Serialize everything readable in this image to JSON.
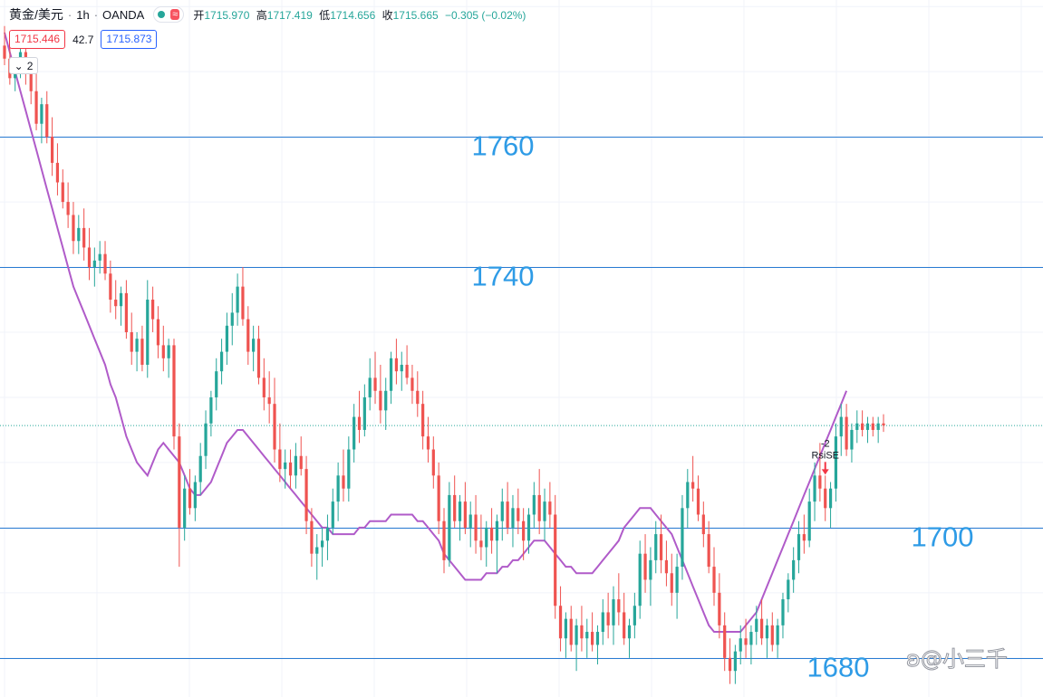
{
  "header": {
    "symbol": "黄金/美元",
    "interval": "1h",
    "source": "OANDA",
    "indicator_icon": "wave-icon",
    "open_label": "开",
    "open": "1715.970",
    "high_label": "高",
    "high": "1717.419",
    "low_label": "低",
    "low": "1714.656",
    "close_label": "收",
    "close": "1715.665",
    "change": "−0.305 (−0.02%)",
    "bid": "1715.446",
    "spread": "42.7",
    "ask": "1715.873",
    "collapse_count": "2",
    "colors": {
      "up": "#26a69a",
      "down": "#ef5350",
      "ma": "#b05bc9",
      "level": "#2a7bd2",
      "label": "#2e9be6"
    }
  },
  "watermark": "@小三千",
  "chart_data": {
    "type": "candlestick",
    "x": "bars (hourly, no axis labels shown)",
    "y_range": [
      1674,
      1781
    ],
    "grid": true,
    "levels": [
      {
        "value": 1760,
        "label": "1760"
      },
      {
        "value": 1740,
        "label": "1740"
      },
      {
        "value": 1700,
        "label": "1700"
      },
      {
        "value": 1680,
        "label": "1680"
      }
    ],
    "current_price": 1715.665,
    "signal": {
      "count": "-2",
      "name": "RsiSE",
      "bar": 155
    },
    "ohlc": [
      [
        1774,
        1777,
        1771,
        1772
      ],
      [
        1772,
        1774,
        1768,
        1769
      ],
      [
        1769,
        1772,
        1767,
        1771
      ],
      [
        1771,
        1775,
        1769,
        1773
      ],
      [
        1773,
        1775,
        1768,
        1770
      ],
      [
        1770,
        1772,
        1765,
        1767
      ],
      [
        1767,
        1770,
        1761,
        1762
      ],
      [
        1762,
        1766,
        1759,
        1765
      ],
      [
        1765,
        1767,
        1759,
        1760
      ],
      [
        1760,
        1763,
        1754,
        1756
      ],
      [
        1756,
        1759,
        1751,
        1753
      ],
      [
        1753,
        1755,
        1749,
        1750
      ],
      [
        1750,
        1753,
        1746,
        1748
      ],
      [
        1748,
        1750,
        1742,
        1744
      ],
      [
        1744,
        1748,
        1742,
        1746
      ],
      [
        1746,
        1749,
        1741,
        1743
      ],
      [
        1743,
        1746,
        1738,
        1740
      ],
      [
        1740,
        1743,
        1737,
        1741
      ],
      [
        1741,
        1744,
        1739,
        1742
      ],
      [
        1742,
        1744,
        1738,
        1739
      ],
      [
        1739,
        1741,
        1733,
        1735
      ],
      [
        1735,
        1738,
        1732,
        1734
      ],
      [
        1734,
        1737,
        1731,
        1736
      ],
      [
        1736,
        1738,
        1729,
        1730
      ],
      [
        1730,
        1733,
        1725,
        1727
      ],
      [
        1727,
        1730,
        1724,
        1729
      ],
      [
        1729,
        1731,
        1724,
        1725
      ],
      [
        1725,
        1738,
        1723,
        1735
      ],
      [
        1735,
        1737,
        1730,
        1732
      ],
      [
        1732,
        1734,
        1726,
        1728
      ],
      [
        1728,
        1731,
        1724,
        1726
      ],
      [
        1726,
        1729,
        1723,
        1728
      ],
      [
        1728,
        1729,
        1712,
        1714
      ],
      [
        1714,
        1716,
        1694,
        1700
      ],
      [
        1700,
        1708,
        1698,
        1706
      ],
      [
        1706,
        1709,
        1702,
        1703
      ],
      [
        1703,
        1708,
        1701,
        1707
      ],
      [
        1707,
        1713,
        1705,
        1711
      ],
      [
        1711,
        1718,
        1709,
        1716
      ],
      [
        1716,
        1721,
        1714,
        1720
      ],
      [
        1720,
        1726,
        1718,
        1724
      ],
      [
        1724,
        1729,
        1722,
        1727
      ],
      [
        1727,
        1733,
        1725,
        1731
      ],
      [
        1731,
        1736,
        1728,
        1733
      ],
      [
        1733,
        1739,
        1731,
        1737
      ],
      [
        1737,
        1740,
        1731,
        1732
      ],
      [
        1732,
        1734,
        1725,
        1727
      ],
      [
        1727,
        1731,
        1724,
        1729
      ],
      [
        1729,
        1731,
        1722,
        1723
      ],
      [
        1723,
        1726,
        1718,
        1720
      ],
      [
        1720,
        1724,
        1716,
        1719
      ],
      [
        1719,
        1723,
        1710,
        1712
      ],
      [
        1712,
        1716,
        1707,
        1709
      ],
      [
        1709,
        1712,
        1706,
        1710
      ],
      [
        1710,
        1712,
        1706,
        1708
      ],
      [
        1708,
        1713,
        1706,
        1711
      ],
      [
        1711,
        1714,
        1708,
        1709
      ],
      [
        1709,
        1711,
        1699,
        1701
      ],
      [
        1701,
        1703,
        1694,
        1696
      ],
      [
        1696,
        1699,
        1692,
        1697
      ],
      [
        1697,
        1700,
        1694,
        1698
      ],
      [
        1698,
        1702,
        1695,
        1700
      ],
      [
        1700,
        1706,
        1699,
        1704
      ],
      [
        1704,
        1710,
        1701,
        1708
      ],
      [
        1708,
        1712,
        1704,
        1706
      ],
      [
        1706,
        1714,
        1704,
        1712
      ],
      [
        1712,
        1719,
        1710,
        1717
      ],
      [
        1717,
        1721,
        1713,
        1715
      ],
      [
        1715,
        1722,
        1714,
        1720
      ],
      [
        1720,
        1726,
        1718,
        1723
      ],
      [
        1723,
        1727,
        1719,
        1721
      ],
      [
        1721,
        1725,
        1716,
        1718
      ],
      [
        1718,
        1723,
        1715,
        1721
      ],
      [
        1721,
        1727,
        1719,
        1726
      ],
      [
        1726,
        1729,
        1722,
        1724
      ],
      [
        1724,
        1727,
        1721,
        1725
      ],
      [
        1725,
        1728,
        1722,
        1723
      ],
      [
        1723,
        1725,
        1719,
        1721
      ],
      [
        1721,
        1724,
        1717,
        1719
      ],
      [
        1719,
        1721,
        1712,
        1714
      ],
      [
        1714,
        1717,
        1710,
        1712
      ],
      [
        1712,
        1714,
        1706,
        1708
      ],
      [
        1708,
        1710,
        1699,
        1701
      ],
      [
        1701,
        1703,
        1693,
        1695
      ],
      [
        1695,
        1707,
        1694,
        1705
      ],
      [
        1705,
        1708,
        1700,
        1701
      ],
      [
        1701,
        1705,
        1698,
        1704
      ],
      [
        1704,
        1707,
        1699,
        1700
      ],
      [
        1700,
        1704,
        1697,
        1702
      ],
      [
        1702,
        1705,
        1696,
        1698
      ],
      [
        1698,
        1702,
        1695,
        1697
      ],
      [
        1697,
        1701,
        1694,
        1700
      ],
      [
        1700,
        1703,
        1696,
        1698
      ],
      [
        1698,
        1702,
        1693,
        1701
      ],
      [
        1701,
        1706,
        1698,
        1704
      ],
      [
        1704,
        1707,
        1699,
        1700
      ],
      [
        1700,
        1705,
        1697,
        1703
      ],
      [
        1703,
        1706,
        1699,
        1701
      ],
      [
        1701,
        1703,
        1695,
        1698
      ],
      [
        1698,
        1703,
        1696,
        1702
      ],
      [
        1702,
        1707,
        1700,
        1705
      ],
      [
        1705,
        1709,
        1699,
        1701
      ],
      [
        1701,
        1706,
        1698,
        1704
      ],
      [
        1704,
        1707,
        1700,
        1702
      ],
      [
        1702,
        1705,
        1686,
        1688
      ],
      [
        1688,
        1691,
        1681,
        1683
      ],
      [
        1683,
        1687,
        1680,
        1686
      ],
      [
        1686,
        1688,
        1681,
        1682
      ],
      [
        1682,
        1686,
        1678,
        1685
      ],
      [
        1685,
        1688,
        1681,
        1683
      ],
      [
        1683,
        1686,
        1680,
        1684
      ],
      [
        1684,
        1687,
        1681,
        1682
      ],
      [
        1682,
        1685,
        1679,
        1684
      ],
      [
        1684,
        1689,
        1682,
        1687
      ],
      [
        1687,
        1690,
        1683,
        1685
      ],
      [
        1685,
        1691,
        1682,
        1689
      ],
      [
        1689,
        1693,
        1685,
        1687
      ],
      [
        1687,
        1690,
        1682,
        1683
      ],
      [
        1683,
        1686,
        1680,
        1685
      ],
      [
        1685,
        1690,
        1683,
        1688
      ],
      [
        1688,
        1698,
        1686,
        1696
      ],
      [
        1696,
        1699,
        1690,
        1692
      ],
      [
        1692,
        1697,
        1688,
        1695
      ],
      [
        1695,
        1701,
        1693,
        1699
      ],
      [
        1699,
        1702,
        1693,
        1695
      ],
      [
        1695,
        1698,
        1691,
        1693
      ],
      [
        1693,
        1696,
        1688,
        1690
      ],
      [
        1690,
        1696,
        1686,
        1694
      ],
      [
        1694,
        1705,
        1692,
        1703
      ],
      [
        1703,
        1709,
        1700,
        1707
      ],
      [
        1707,
        1711,
        1704,
        1706
      ],
      [
        1706,
        1708,
        1701,
        1702
      ],
      [
        1702,
        1704,
        1697,
        1699
      ],
      [
        1699,
        1701,
        1693,
        1694
      ],
      [
        1694,
        1697,
        1688,
        1690
      ],
      [
        1690,
        1693,
        1683,
        1685
      ],
      [
        1685,
        1687,
        1678,
        1680
      ],
      [
        1680,
        1683,
        1676,
        1678
      ],
      [
        1678,
        1682,
        1676,
        1681
      ],
      [
        1681,
        1685,
        1679,
        1683
      ],
      [
        1683,
        1686,
        1680,
        1682
      ],
      [
        1682,
        1685,
        1679,
        1684
      ],
      [
        1684,
        1688,
        1682,
        1686
      ],
      [
        1686,
        1689,
        1682,
        1683
      ],
      [
        1683,
        1686,
        1680,
        1685
      ],
      [
        1685,
        1687,
        1681,
        1682
      ],
      [
        1682,
        1686,
        1680,
        1685
      ],
      [
        1685,
        1690,
        1683,
        1689
      ],
      [
        1689,
        1693,
        1687,
        1692
      ],
      [
        1692,
        1697,
        1690,
        1695
      ],
      [
        1695,
        1701,
        1693,
        1699
      ],
      [
        1699,
        1702,
        1696,
        1698
      ],
      [
        1698,
        1706,
        1697,
        1704
      ],
      [
        1704,
        1710,
        1701,
        1708
      ],
      [
        1708,
        1713,
        1704,
        1706
      ],
      [
        1706,
        1708,
        1701,
        1703
      ],
      [
        1703,
        1707,
        1700,
        1706
      ],
      [
        1706,
        1716,
        1704,
        1714
      ],
      [
        1714,
        1719,
        1711,
        1717
      ],
      [
        1717,
        1719,
        1711,
        1712
      ],
      [
        1712,
        1716,
        1710,
        1715
      ],
      [
        1715,
        1718,
        1713,
        1716
      ],
      [
        1716,
        1718,
        1714,
        1715
      ],
      [
        1715,
        1717,
        1713,
        1716
      ],
      [
        1716,
        1717,
        1714,
        1715
      ],
      [
        1715,
        1717,
        1713,
        1716
      ],
      [
        1716,
        1717.4,
        1714.7,
        1715.7
      ]
    ],
    "ma": [
      1776,
      1773,
      1770,
      1767,
      1764,
      1761,
      1758,
      1755,
      1752,
      1749,
      1746,
      1743,
      1740,
      1737,
      1735,
      1733,
      1731,
      1729,
      1727,
      1725,
      1722,
      1720,
      1717,
      1714,
      1712,
      1710,
      1709,
      1708,
      1710,
      1712,
      1713,
      1712,
      1711,
      1710,
      1708,
      1706,
      1705,
      1705,
      1706,
      1707,
      1709,
      1711,
      1713,
      1714,
      1715,
      1715,
      1714,
      1713,
      1712,
      1711,
      1710,
      1709,
      1708,
      1707,
      1706,
      1705,
      1704,
      1703,
      1702,
      1701,
      1700,
      1700,
      1699,
      1699,
      1699,
      1699,
      1699,
      1700,
      1700,
      1701,
      1701,
      1701,
      1701,
      1702,
      1702,
      1702,
      1702,
      1702,
      1701,
      1701,
      1700,
      1699,
      1698,
      1696,
      1695,
      1694,
      1693,
      1692,
      1692,
      1692,
      1692,
      1693,
      1693,
      1693,
      1694,
      1694,
      1695,
      1695,
      1696,
      1697,
      1698,
      1698,
      1698,
      1697,
      1696,
      1695,
      1694,
      1694,
      1693,
      1693,
      1693,
      1693,
      1694,
      1695,
      1696,
      1697,
      1698,
      1700,
      1701,
      1702,
      1703,
      1703,
      1703,
      1702,
      1701,
      1700,
      1699,
      1697,
      1695,
      1693,
      1691,
      1689,
      1687,
      1685,
      1684,
      1684,
      1684,
      1684,
      1684,
      1684,
      1685,
      1686,
      1687,
      1689,
      1691,
      1693,
      1695,
      1697,
      1699,
      1701,
      1703,
      1705,
      1707,
      1709,
      1711,
      1713,
      1715,
      1717,
      1719,
      1721
    ]
  }
}
